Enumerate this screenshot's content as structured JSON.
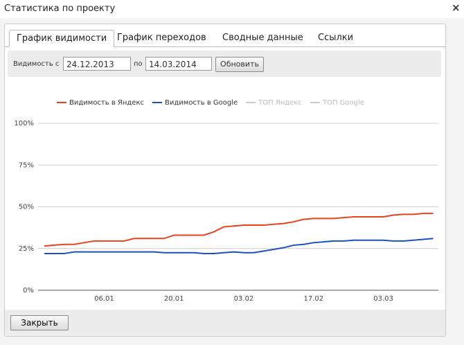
{
  "dialog": {
    "title": "Статистика по проекту",
    "close_button": "Закрыть"
  },
  "tabs": [
    "График видимости",
    "График переходов",
    "Сводные данные",
    "Ссылки"
  ],
  "filter": {
    "label_from": "Видимость с",
    "date_from": "24.12.2013",
    "label_to": "по",
    "date_to": "14.03.2014",
    "button": "Обновить"
  },
  "chart_data": {
    "type": "line",
    "categories": [
      null,
      null,
      null,
      null,
      null,
      null,
      "06.01",
      null,
      null,
      null,
      null,
      null,
      null,
      "20.01",
      null,
      null,
      null,
      null,
      null,
      null,
      "03.02",
      null,
      null,
      null,
      null,
      null,
      null,
      "17.02",
      null,
      null,
      null,
      null,
      null,
      null,
      "03.03",
      null,
      null,
      null,
      null,
      null
    ],
    "series": [
      {
        "name": "Видимость в Яндекс",
        "color": "#e8431a",
        "values": [
          26.5,
          27,
          27.5,
          27.5,
          28.5,
          29.5,
          29.5,
          29.5,
          29.5,
          31,
          31,
          31,
          31,
          33,
          33,
          33,
          33,
          35,
          38,
          38.5,
          39,
          39,
          39,
          39.5,
          40,
          41,
          42.5,
          43,
          43,
          43,
          43.5,
          44,
          44,
          44,
          44,
          45,
          45.5,
          45.5,
          46,
          46
        ]
      },
      {
        "name": "Видимость в Google",
        "color": "#1a4fc4",
        "values": [
          22,
          22,
          22,
          23,
          23,
          23,
          23,
          23,
          23,
          23,
          23,
          23,
          22.5,
          22.5,
          22.5,
          22.5,
          22,
          22,
          22.5,
          23,
          22.5,
          22.5,
          23.5,
          24.5,
          25.5,
          27,
          27.5,
          28.5,
          29,
          29.5,
          29.5,
          30,
          30,
          30,
          30,
          29.5,
          29.5,
          30,
          30.5,
          31
        ]
      },
      {
        "name": "ТОП Яндекс",
        "color": "#cccccc",
        "values": [
          null,
          null,
          null,
          null,
          null,
          null,
          null,
          null,
          null,
          null,
          null,
          null,
          null,
          null,
          null,
          null,
          null,
          null,
          null,
          null,
          null,
          null,
          null,
          null,
          null,
          null,
          null,
          null,
          null,
          null,
          null,
          null,
          null,
          null,
          null,
          null,
          null,
          null,
          null,
          null
        ]
      },
      {
        "name": "ТОП Google",
        "color": "#cccccc",
        "values": [
          null,
          null,
          null,
          null,
          null,
          null,
          null,
          null,
          null,
          null,
          null,
          null,
          null,
          null,
          null,
          null,
          null,
          null,
          null,
          null,
          null,
          null,
          null,
          null,
          null,
          null,
          null,
          null,
          null,
          null,
          null,
          null,
          null,
          null,
          null,
          null,
          null,
          null,
          null,
          null
        ]
      }
    ],
    "ylim": [
      0,
      100
    ],
    "yticks": [
      {
        "value": 0,
        "label": "0%"
      },
      {
        "value": 25,
        "label": "25%"
      },
      {
        "value": 50,
        "label": "50%"
      },
      {
        "value": 75,
        "label": "75%"
      },
      {
        "value": 100,
        "label": "100%"
      }
    ],
    "grid": true,
    "legend": "top"
  }
}
